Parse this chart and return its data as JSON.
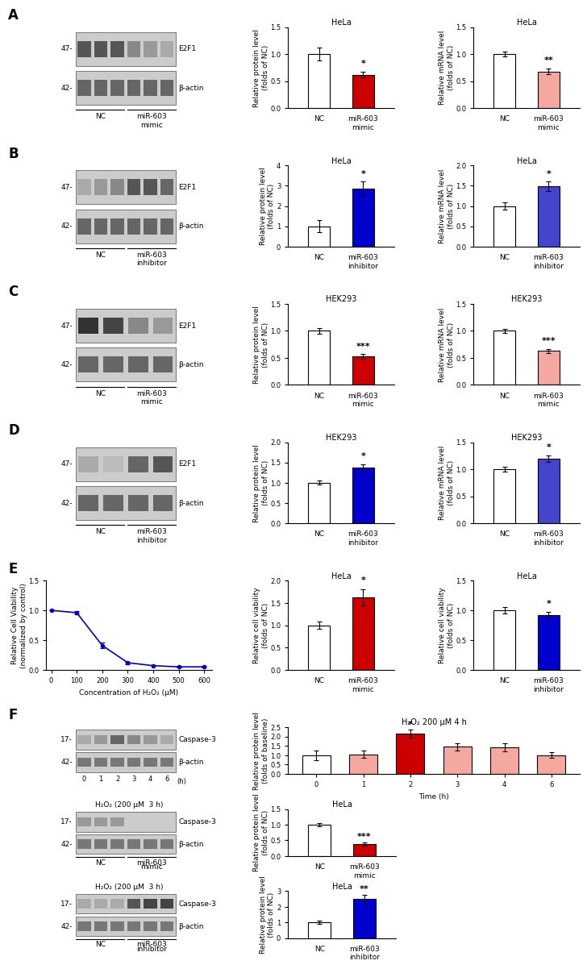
{
  "panel_A_protein": {
    "NC": 1.0,
    "miR603": 0.62,
    "NC_err": 0.12,
    "miR603_err": 0.05,
    "sig": "*",
    "title": "HeLa",
    "ylim": [
      0,
      1.5
    ],
    "yticks": [
      0.0,
      0.5,
      1.0,
      1.5
    ],
    "ylabel": "Relative protein level\n(folds of NC)",
    "xticklabels": [
      "NC",
      "miR-603\nmimic"
    ],
    "colors": [
      "white",
      "#cc0000"
    ]
  },
  "panel_A_mRNA": {
    "NC": 1.0,
    "miR603": 0.68,
    "NC_err": 0.05,
    "miR603_err": 0.05,
    "sig": "**",
    "title": "HeLa",
    "ylim": [
      0,
      1.5
    ],
    "yticks": [
      0.0,
      0.5,
      1.0,
      1.5
    ],
    "ylabel": "Relative mRNA level\n(folds of NC)",
    "xticklabels": [
      "NC",
      "miR-603\nmimic"
    ],
    "colors": [
      "white",
      "#f4a8a0"
    ]
  },
  "panel_B_protein": {
    "NC": 1.0,
    "miR603": 2.85,
    "NC_err": 0.3,
    "miR603_err": 0.35,
    "sig": "*",
    "title": "HeLa",
    "ylim": [
      0,
      4
    ],
    "yticks": [
      0,
      1,
      2,
      3,
      4
    ],
    "ylabel": "Relative protein level\n(folds of NC)",
    "xticklabels": [
      "NC",
      "miR-603\ninhibitor"
    ],
    "colors": [
      "white",
      "#0000cc"
    ]
  },
  "panel_B_mRNA": {
    "NC": 1.0,
    "miR603": 1.48,
    "NC_err": 0.08,
    "miR603_err": 0.12,
    "sig": "*",
    "title": "HeLa",
    "ylim": [
      0,
      2.0
    ],
    "yticks": [
      0.0,
      0.5,
      1.0,
      1.5,
      2.0
    ],
    "ylabel": "Relative mRNA level\n(folds of NC)",
    "xticklabels": [
      "NC",
      "miR-603\ninhibitor"
    ],
    "colors": [
      "white",
      "#4444cc"
    ]
  },
  "panel_C_protein": {
    "NC": 1.0,
    "miR603": 0.53,
    "NC_err": 0.05,
    "miR603_err": 0.04,
    "sig": "***",
    "title": "HEK293",
    "ylim": [
      0,
      1.5
    ],
    "yticks": [
      0.0,
      0.5,
      1.0,
      1.5
    ],
    "ylabel": "Relative protein level\n(folds of NC)",
    "xticklabels": [
      "NC",
      "miR-603\nmimic"
    ],
    "colors": [
      "white",
      "#cc0000"
    ]
  },
  "panel_C_mRNA": {
    "NC": 1.0,
    "miR603": 0.63,
    "NC_err": 0.04,
    "miR603_err": 0.04,
    "sig": "***",
    "title": "HEK293",
    "ylim": [
      0,
      1.5
    ],
    "yticks": [
      0.0,
      0.5,
      1.0,
      1.5
    ],
    "ylabel": "Relative mRNA level\n(folds of NC)",
    "xticklabels": [
      "NC",
      "miR-603\nmimic"
    ],
    "colors": [
      "white",
      "#f4a8a0"
    ]
  },
  "panel_D_protein": {
    "NC": 1.0,
    "miR603": 1.38,
    "NC_err": 0.05,
    "miR603_err": 0.08,
    "sig": "*",
    "title": "HEK293",
    "ylim": [
      0,
      2.0
    ],
    "yticks": [
      0.0,
      0.5,
      1.0,
      1.5,
      2.0
    ],
    "ylabel": "Relative protein level\n(folds of NC)",
    "xticklabels": [
      "NC",
      "miR-603\ninhibitor"
    ],
    "colors": [
      "white",
      "#0000cc"
    ]
  },
  "panel_D_mRNA": {
    "NC": 1.0,
    "miR603": 1.2,
    "NC_err": 0.05,
    "miR603_err": 0.06,
    "sig": "*",
    "title": "HEK293",
    "ylim": [
      0,
      1.5
    ],
    "yticks": [
      0.0,
      0.5,
      1.0,
      1.5
    ],
    "ylabel": "Relative mRNA level\n(folds of NC)",
    "xticklabels": [
      "NC",
      "miR-603\ninhibitor"
    ],
    "colors": [
      "white",
      "#4444cc"
    ]
  },
  "panel_E_viability": {
    "x": [
      0,
      100,
      200,
      300,
      400,
      500,
      600
    ],
    "y": [
      1.0,
      0.96,
      0.41,
      0.12,
      0.07,
      0.05,
      0.05
    ],
    "err": [
      0.0,
      0.03,
      0.05,
      0.02,
      0.01,
      0.01,
      0.01
    ],
    "color": "#0000cc",
    "xlabel": "Concentration of H₂O₂ (μM)",
    "ylabel": "Relative Cell Viability\n(normalized by control)",
    "ylim": [
      0,
      1.5
    ],
    "yticks": [
      0.0,
      0.5,
      1.0,
      1.5
    ]
  },
  "panel_E_mimic": {
    "NC": 1.0,
    "miR603": 1.63,
    "NC_err": 0.08,
    "miR603_err": 0.18,
    "sig": "*",
    "title": "HeLa",
    "ylim": [
      0,
      2.0
    ],
    "yticks": [
      0.0,
      0.5,
      1.0,
      1.5,
      2.0
    ],
    "ylabel": "Relative cell viability\n(folds of NC)",
    "xticklabels": [
      "NC",
      "miR-603\nmimic"
    ],
    "colors": [
      "white",
      "#cc0000"
    ]
  },
  "panel_E_inhibitor": {
    "NC": 1.0,
    "miR603": 0.92,
    "NC_err": 0.05,
    "miR603_err": 0.05,
    "sig": "*",
    "title": "HeLa",
    "ylim": [
      0,
      1.5
    ],
    "yticks": [
      0.0,
      0.5,
      1.0,
      1.5
    ],
    "ylabel": "Relative cell viability\n(folds of NC)",
    "xticklabels": [
      "NC",
      "miR-603\ninhibitor"
    ],
    "colors": [
      "white",
      "#0000cc"
    ]
  },
  "panel_F_timecourse": {
    "x": [
      0,
      1,
      2,
      3,
      4,
      6
    ],
    "y": [
      1.0,
      1.05,
      2.15,
      1.45,
      1.42,
      1.0
    ],
    "err": [
      0.25,
      0.18,
      0.22,
      0.18,
      0.22,
      0.15
    ],
    "colors": [
      "white",
      "#f4a8a0",
      "#cc0000",
      "#f4a8a0",
      "#f4a8a0",
      "#f4a8a0"
    ],
    "sig_idx": 2,
    "sig": "*",
    "title": "H₂O₂ 200 μM 4 h",
    "ylim": [
      0,
      2.5
    ],
    "yticks": [
      0.0,
      0.5,
      1.0,
      1.5,
      2.0,
      2.5
    ],
    "ylabel": "Relative protein level\n(folds of baseline)",
    "xlabel": "Time (h)",
    "xtick_labels": [
      "0",
      "1",
      "2",
      "3",
      "4",
      "6"
    ]
  },
  "panel_F_mimic": {
    "NC": 1.0,
    "miR603": 0.38,
    "NC_err": 0.06,
    "miR603_err": 0.05,
    "sig": "***",
    "title": "HeLa",
    "ylim": [
      0,
      1.5
    ],
    "yticks": [
      0.0,
      0.5,
      1.0,
      1.5
    ],
    "ylabel": "Relative protein level\n(folds of NC)",
    "xticklabels": [
      "NC",
      "miR-603\nmimic"
    ],
    "colors": [
      "white",
      "#cc0000"
    ]
  },
  "panel_F_inhibitor": {
    "NC": 1.0,
    "miR603": 2.5,
    "NC_err": 0.1,
    "miR603_err": 0.25,
    "sig": "**",
    "title": "HeLa",
    "ylim": [
      0,
      3
    ],
    "yticks": [
      0,
      1,
      2,
      3
    ],
    "ylabel": "Relative protein level\n(folds of NC)",
    "xticklabels": [
      "NC",
      "miR-603\ninhibitor"
    ],
    "colors": [
      "white",
      "#0000cc"
    ]
  },
  "lfs": 6.5,
  "tfs": 6.0,
  "tifs": 7.0,
  "sfs": 8.0,
  "plfs": 12
}
